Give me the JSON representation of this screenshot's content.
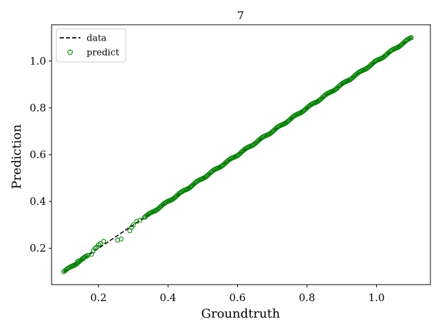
{
  "chart_data": {
    "type": "scatter",
    "title": "7",
    "xlabel": "Groundtruth",
    "ylabel": "Prediction",
    "xlim": [
      0.065,
      1.155
    ],
    "ylim": [
      0.045,
      1.155
    ],
    "xticks": [
      0.2,
      0.4,
      0.6,
      0.8,
      1.0
    ],
    "yticks": [
      0.2,
      0.4,
      0.6,
      0.8,
      1.0
    ],
    "xtick_labels": [
      "0.2",
      "0.4",
      "0.6",
      "0.8",
      "1.0"
    ],
    "ytick_labels": [
      "0.2",
      "0.4",
      "0.6",
      "0.8",
      "1.0"
    ],
    "grid": false,
    "legend_position": "upper left",
    "series": [
      {
        "name": "data",
        "kind": "line",
        "style": "dashed",
        "color": "#000000",
        "x": [
          0.1,
          1.1
        ],
        "y": [
          0.1,
          1.1
        ]
      },
      {
        "name": "predict",
        "kind": "scatter",
        "marker": "pentagon",
        "color": "#008000",
        "outliers": [
          [
            0.18,
            0.175
          ],
          [
            0.185,
            0.19
          ],
          [
            0.19,
            0.2
          ],
          [
            0.195,
            0.205
          ],
          [
            0.2,
            0.215
          ],
          [
            0.205,
            0.22
          ],
          [
            0.215,
            0.23
          ],
          [
            0.255,
            0.235
          ],
          [
            0.265,
            0.24
          ],
          [
            0.29,
            0.275
          ],
          [
            0.295,
            0.29
          ],
          [
            0.3,
            0.3
          ],
          [
            0.31,
            0.315
          ],
          [
            0.32,
            0.32
          ],
          [
            0.155,
            0.155
          ],
          [
            0.14,
            0.145
          ],
          [
            0.125,
            0.125
          ]
        ],
        "trend_start": 0.1,
        "trend_end": 1.1,
        "trend_count": 320
      }
    ]
  }
}
